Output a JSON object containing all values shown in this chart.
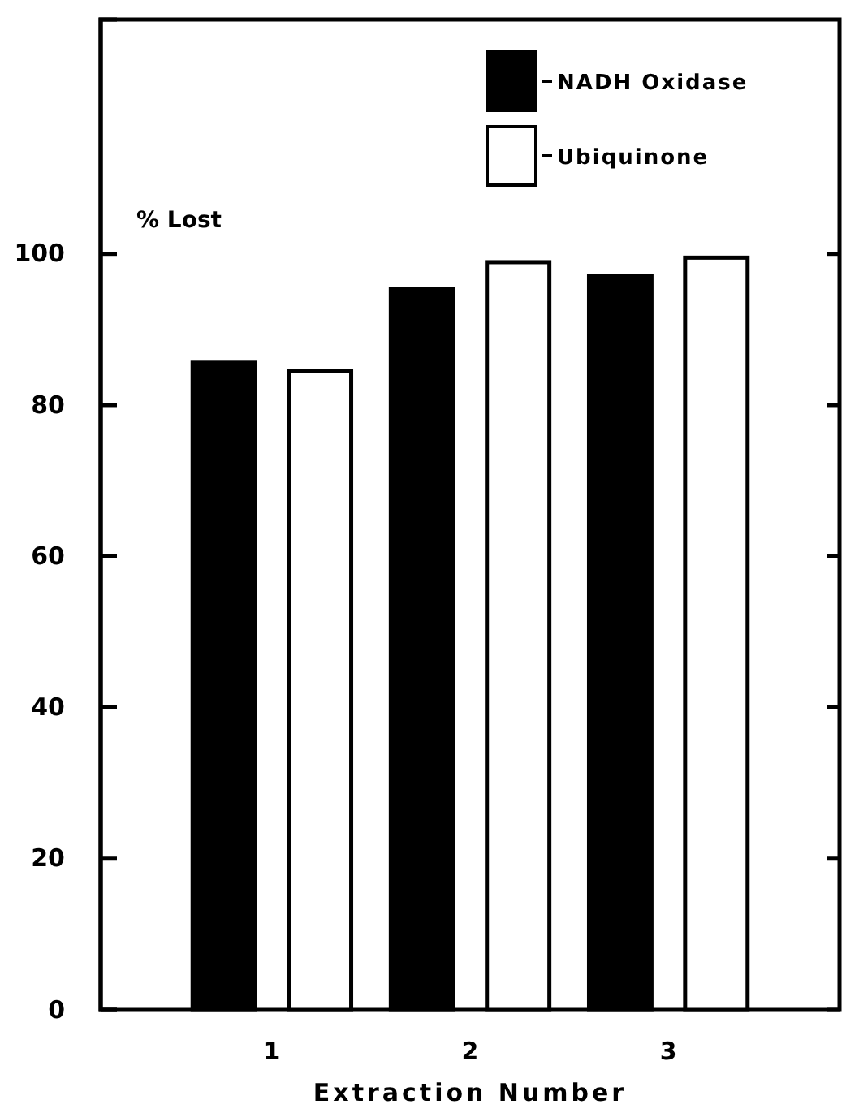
{
  "chart_data": {
    "type": "bar",
    "xlabel": "Extraction Number",
    "ylabel": "% Lost",
    "categories": [
      "1",
      "2",
      "3"
    ],
    "series": [
      {
        "name": "NADH Oxidase",
        "color": "#000000",
        "values": [
          85.6,
          95.4,
          97.1
        ]
      },
      {
        "name": "Ubiquinone",
        "color": "#ffffff",
        "values": [
          84.5,
          98.9,
          99.5
        ]
      }
    ],
    "ylim": [
      0,
      131
    ],
    "yticks": [
      0,
      20,
      40,
      60,
      80,
      100
    ],
    "grid": false,
    "legend": "top right"
  }
}
